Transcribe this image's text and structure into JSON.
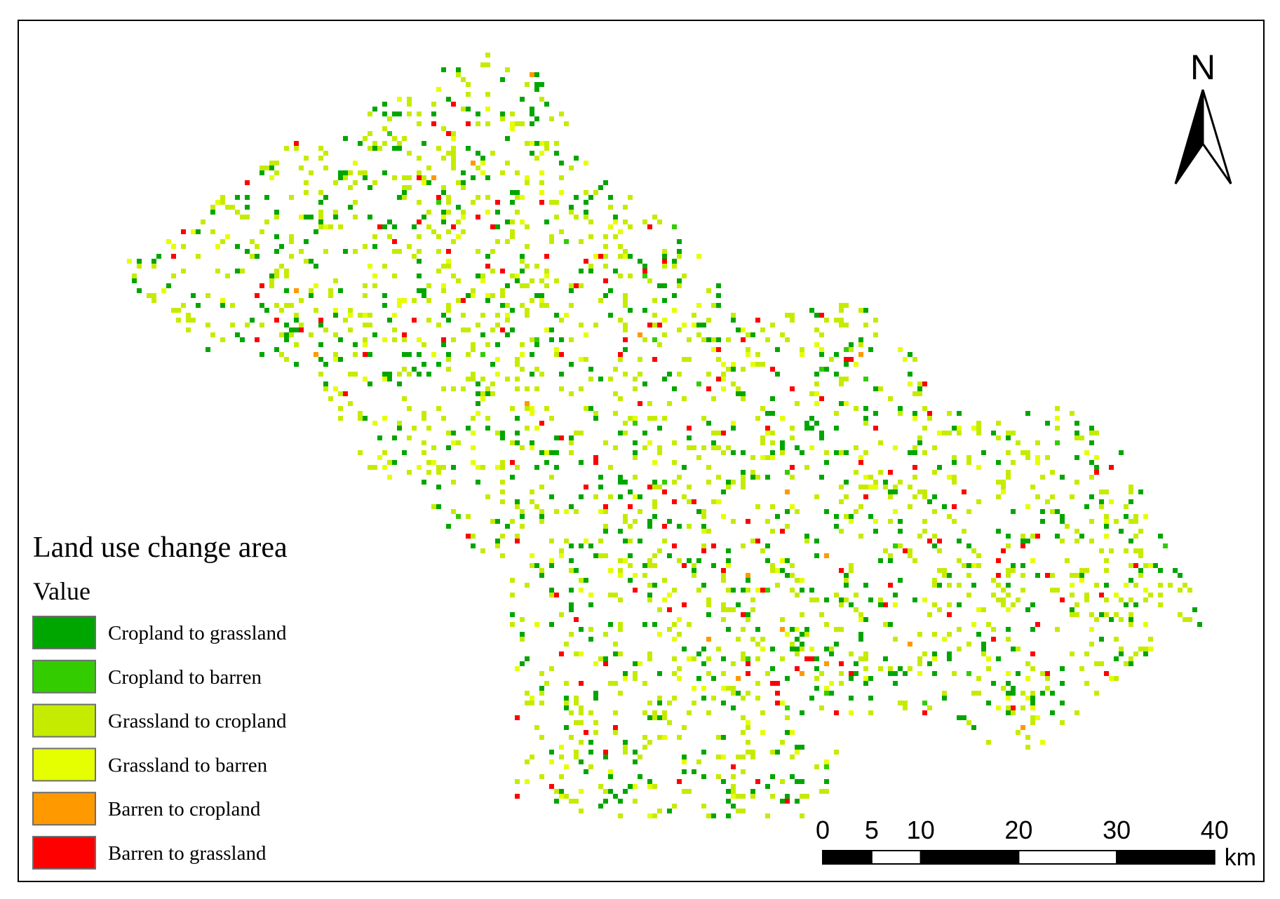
{
  "legend": {
    "title": "Land use change area",
    "subtitle": "Value",
    "items": [
      {
        "label": "Cropland to grassland",
        "color": "#00a600"
      },
      {
        "label": "Cropland to barren",
        "color": "#33cc00"
      },
      {
        "label": "Grassland to cropland",
        "color": "#c5ec00"
      },
      {
        "label": "Grassland to barren",
        "color": "#e6ff00"
      },
      {
        "label": "Barren to cropland",
        "color": "#ff9900"
      },
      {
        "label": "Barren to grassland",
        "color": "#ff0000"
      }
    ]
  },
  "north_arrow": {
    "label": "N"
  },
  "scale_bar": {
    "ticks": [
      0,
      5,
      10,
      20,
      30,
      40
    ],
    "unit": "km"
  }
}
